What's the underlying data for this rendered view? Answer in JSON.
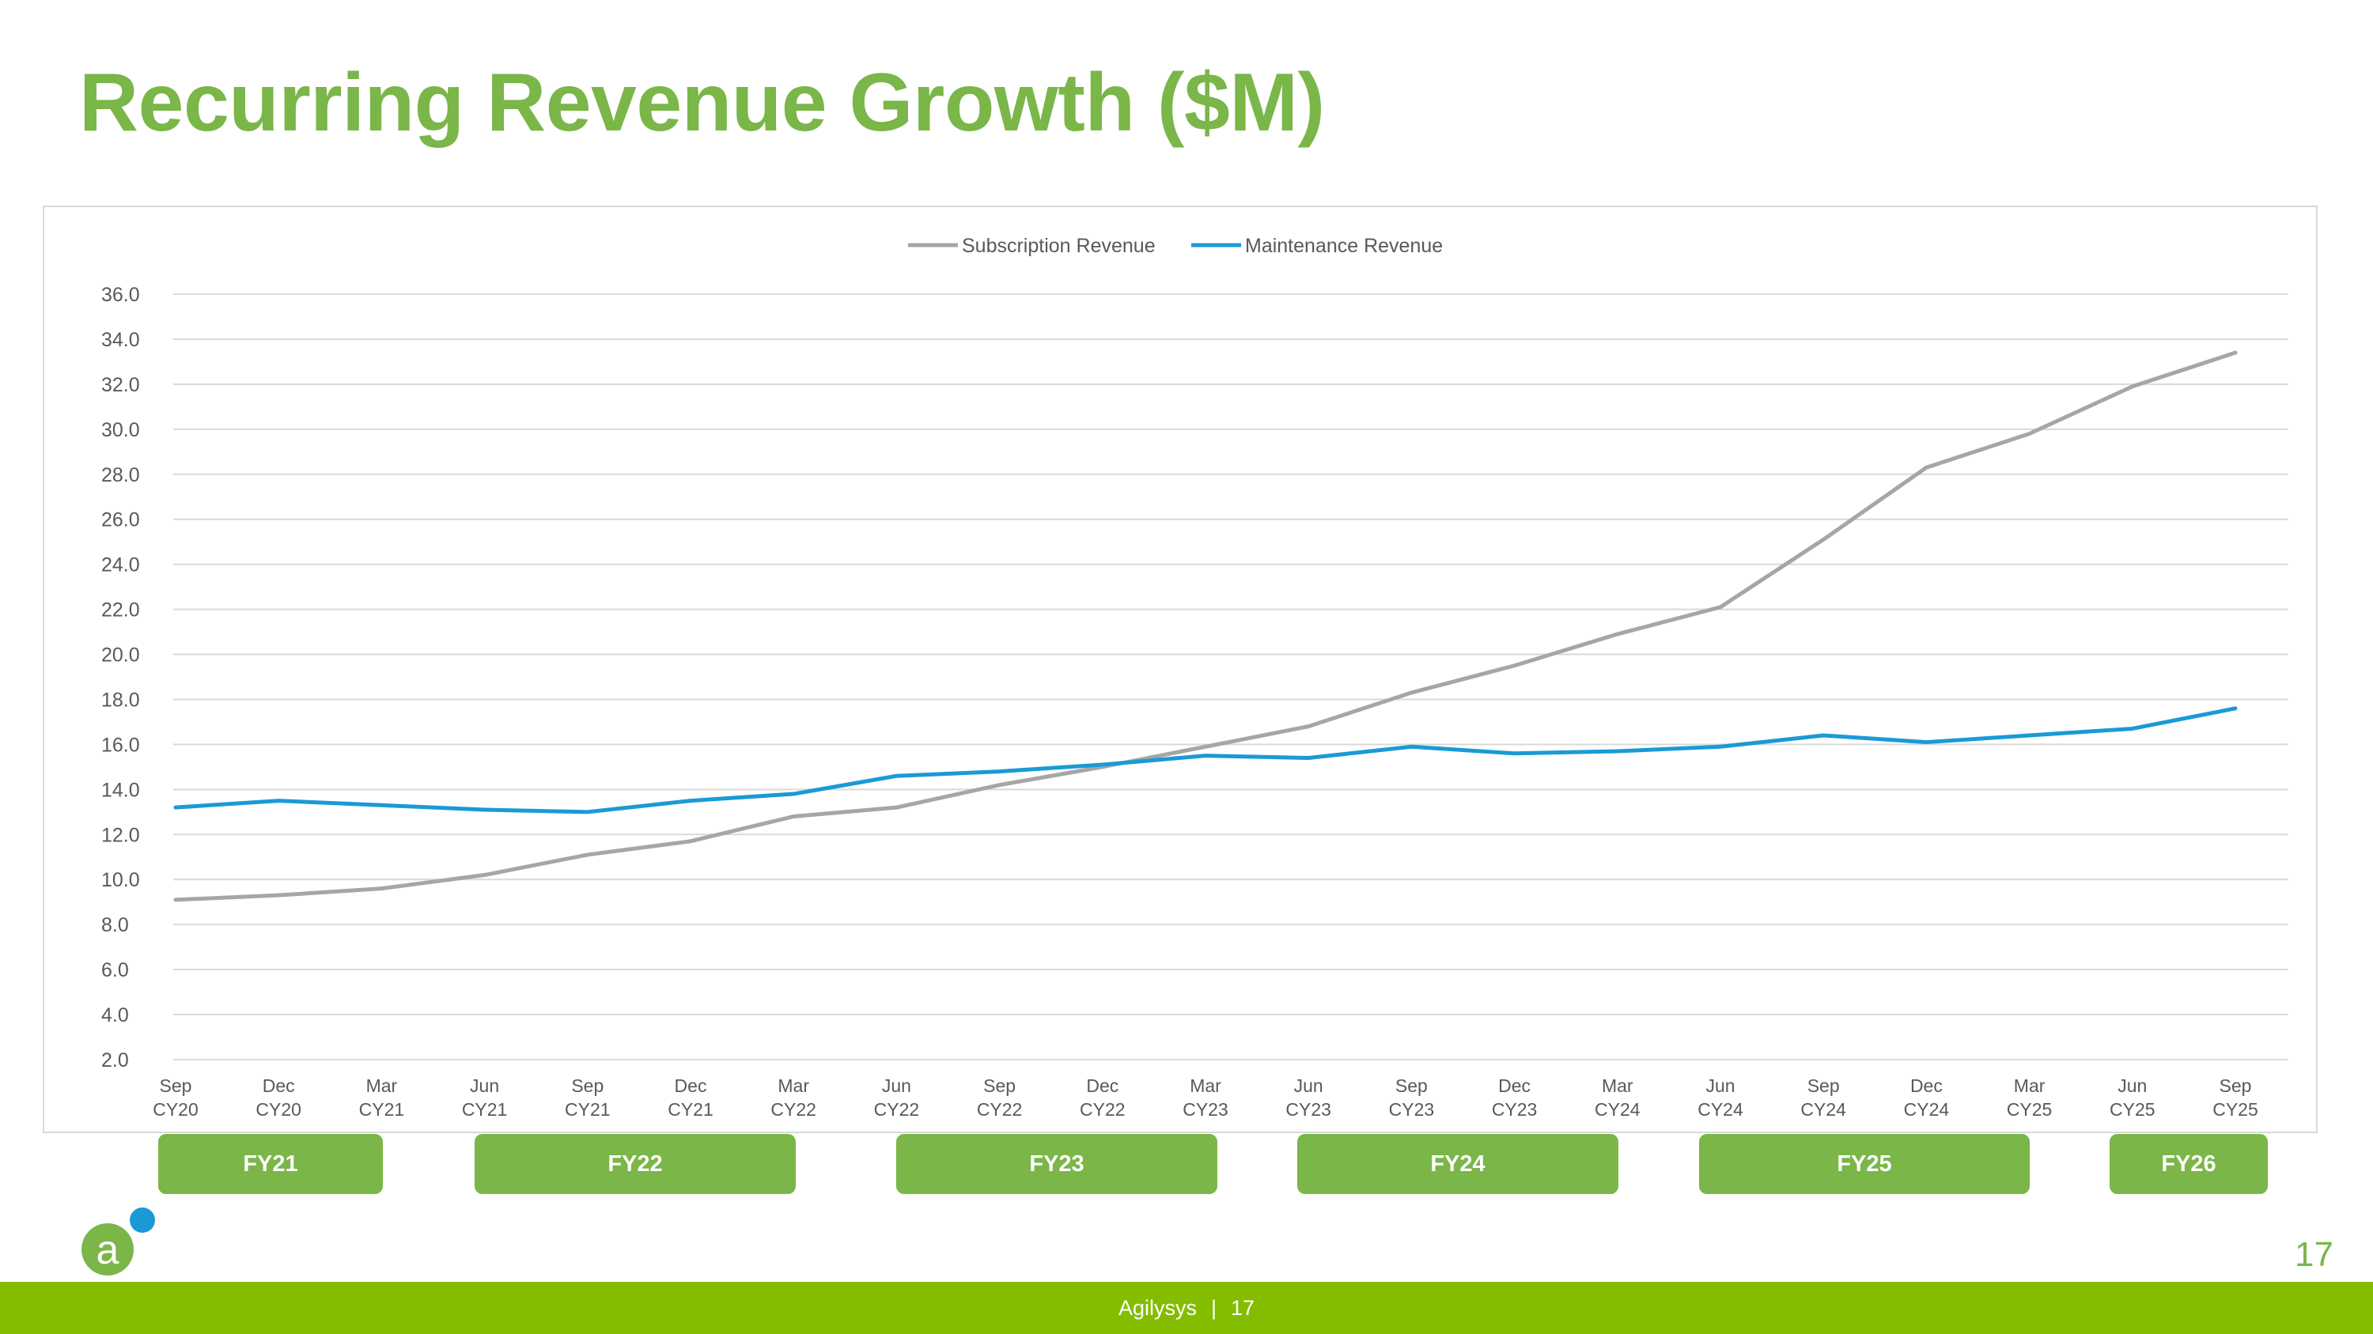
{
  "page": {
    "title": "Recurring Revenue Growth ($M)",
    "page_number": "17",
    "footer_company": "Agilysys",
    "footer_separator": "|",
    "footer_page": "17"
  },
  "colors": {
    "title": "#7ab648",
    "subscription": "#a6a6a6",
    "maintenance": "#1a9ad6",
    "fy_box": "#7ab648",
    "footer": "#84bd00",
    "logo_green": "#7ab648",
    "logo_blue": "#1a9ad6"
  },
  "fiscal_years": [
    {
      "label": "FY21",
      "from": 0,
      "to": 2
    },
    {
      "label": "FY22",
      "from": 3,
      "to": 6
    },
    {
      "label": "FY23",
      "from": 7,
      "to": 10
    },
    {
      "label": "FY24",
      "from": 11,
      "to": 14
    },
    {
      "label": "FY25",
      "from": 15,
      "to": 18
    },
    {
      "label": "FY26",
      "from": 19,
      "to": 20
    }
  ],
  "chart_data": {
    "type": "line",
    "title": "",
    "xlabel": "",
    "ylabel": "",
    "ylim": [
      2,
      36
    ],
    "yticks": [
      "2.0",
      "4.0",
      "6.0",
      "8.0",
      "10.0",
      "12.0",
      "14.0",
      "16.0",
      "18.0",
      "20.0",
      "22.0",
      "24.0",
      "26.0",
      "28.0",
      "30.0",
      "32.0",
      "34.0",
      "36.0"
    ],
    "grid": true,
    "legend_position": "top-center",
    "categories": [
      [
        "Sep",
        "CY20"
      ],
      [
        "Dec",
        "CY20"
      ],
      [
        "Mar",
        "CY21"
      ],
      [
        "Jun",
        "CY21"
      ],
      [
        "Sep",
        "CY21"
      ],
      [
        "Dec",
        "CY21"
      ],
      [
        "Mar",
        "CY22"
      ],
      [
        "Jun",
        "CY22"
      ],
      [
        "Sep",
        "CY22"
      ],
      [
        "Dec",
        "CY22"
      ],
      [
        "Mar",
        "CY23"
      ],
      [
        "Jun",
        "CY23"
      ],
      [
        "Sep",
        "CY23"
      ],
      [
        "Dec",
        "CY23"
      ],
      [
        "Mar",
        "CY24"
      ],
      [
        "Jun",
        "CY24"
      ],
      [
        "Sep",
        "CY24"
      ],
      [
        "Dec",
        "CY24"
      ],
      [
        "Mar",
        "CY25"
      ],
      [
        "Jun",
        "CY25"
      ],
      [
        "Sep",
        "CY25"
      ]
    ],
    "series": [
      {
        "name": "Subscription Revenue",
        "color": "#a6a6a6",
        "values": [
          9.1,
          9.3,
          9.6,
          10.2,
          11.1,
          11.7,
          12.8,
          13.2,
          14.2,
          15.0,
          15.9,
          16.8,
          18.3,
          19.5,
          20.9,
          22.1,
          25.1,
          28.3,
          29.8,
          31.9,
          33.4
        ]
      },
      {
        "name": "Maintenance Revenue",
        "color": "#1a9ad6",
        "values": [
          13.2,
          13.5,
          13.3,
          13.1,
          13.0,
          13.5,
          13.8,
          14.6,
          14.8,
          15.1,
          15.5,
          15.4,
          15.9,
          15.6,
          15.7,
          15.9,
          16.4,
          16.1,
          16.4,
          16.7,
          17.6
        ]
      }
    ]
  }
}
